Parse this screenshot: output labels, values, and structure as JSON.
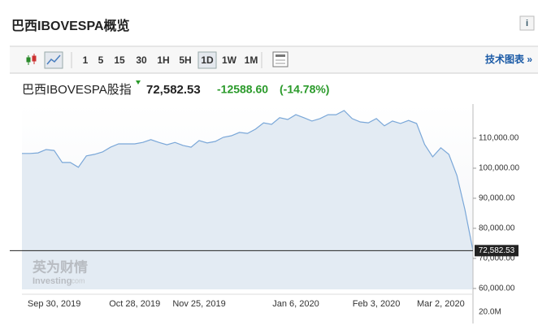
{
  "header": {
    "title": "巴西IBOVESPA概览",
    "info_icon": "i"
  },
  "toolbar": {
    "intervals": [
      "1",
      "5",
      "15",
      "30",
      "1H",
      "5H",
      "1D",
      "1W",
      "1M"
    ],
    "selected_interval_index": 6,
    "link": "技术图表 »"
  },
  "quote": {
    "name": "巴西IBOVESPA股指",
    "price": "72,582.53",
    "change": "-12588.60",
    "change_pct": "(-14.78%)"
  },
  "chart_data": {
    "type": "area",
    "line_color": "#7aa7d8",
    "fill_color": "#e3ebf3",
    "categories": [
      null,
      null,
      null,
      null,
      "Sep 30, 2019",
      null,
      null,
      null,
      null,
      null,
      null,
      null,
      null,
      null,
      "Oct 28, 2019",
      null,
      null,
      null,
      null,
      null,
      null,
      null,
      "Nov 25, 2019",
      null,
      null,
      null,
      null,
      null,
      null,
      null,
      null,
      null,
      null,
      null,
      "Jan 6, 2020",
      null,
      null,
      null,
      null,
      null,
      null,
      null,
      null,
      null,
      "Feb 3, 2020",
      null,
      null,
      null,
      null,
      null,
      null,
      null,
      "Mar 2, 2020",
      null,
      null,
      null,
      null
    ],
    "values": [
      104900,
      104900,
      105100,
      106200,
      105900,
      101900,
      101900,
      100300,
      104100,
      104600,
      105400,
      107000,
      108100,
      108100,
      108100,
      108600,
      109500,
      108600,
      107800,
      108600,
      107600,
      107000,
      109200,
      108400,
      108900,
      110300,
      110800,
      111900,
      111600,
      113000,
      115100,
      114600,
      116800,
      116200,
      117800,
      116800,
      115700,
      116500,
      117800,
      117800,
      119200,
      116500,
      115400,
      115100,
      116500,
      114100,
      115700,
      114900,
      115900,
      114900,
      107900,
      103800,
      106800,
      104600,
      97600,
      86200,
      72582.53
    ],
    "ylim": [
      59700,
      121350
    ],
    "yticks": [
      {
        "value": 60000,
        "label": "60,000.00"
      },
      {
        "value": 70000,
        "label": "70,000.00"
      },
      {
        "value": 80000,
        "label": "80,000.00"
      },
      {
        "value": 90000,
        "label": "90,000.00"
      },
      {
        "value": 100000,
        "label": "100,000.00"
      },
      {
        "value": 110000,
        "label": "110,000.00"
      }
    ],
    "volume_tick": "20.0M",
    "watermark": "英为财情",
    "watermark_sub": "Investing",
    "watermark_domain": ".com"
  }
}
